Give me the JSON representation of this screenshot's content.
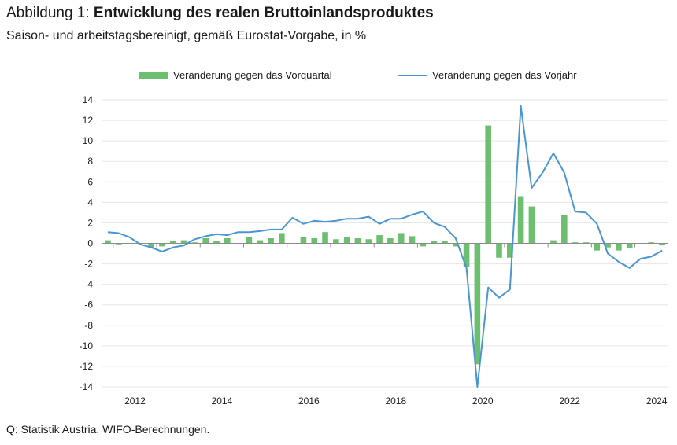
{
  "header": {
    "title_prefix": "Abbildung 1: ",
    "title_main": "Entwicklung des realen Bruttoinlandsproduktes",
    "subtitle": "Saison- und arbeitstagsbereinigt, gemäß Eurostat-Vorgabe, in %"
  },
  "footer": {
    "source": "Q: Statistik Austria, WIFO-Berechnungen."
  },
  "colors": {
    "bar": "#6cbf6e",
    "line": "#4a96d2",
    "grid": "#e6e6e6",
    "axis": "#8c8c8c"
  },
  "chart_data": {
    "type": "bar",
    "ylim": [
      -14,
      14
    ],
    "yticks": [
      "14",
      "12",
      "10",
      "8",
      "6",
      "4",
      "2",
      "0",
      "-2",
      "-4",
      "-6",
      "-8",
      "-10",
      "-12",
      "-14"
    ],
    "xticks": [
      "2012",
      "2014",
      "2016",
      "2018",
      "2020",
      "2022",
      "2024"
    ],
    "grid": true,
    "legend_position": "top",
    "categories": [
      "2011Q4",
      "2012Q1",
      "2012Q2",
      "2012Q3",
      "2012Q4",
      "2013Q1",
      "2013Q2",
      "2013Q3",
      "2013Q4",
      "2014Q1",
      "2014Q2",
      "2014Q3",
      "2014Q4",
      "2015Q1",
      "2015Q2",
      "2015Q3",
      "2015Q4",
      "2016Q1",
      "2016Q2",
      "2016Q3",
      "2016Q4",
      "2017Q1",
      "2017Q2",
      "2017Q3",
      "2017Q4",
      "2018Q1",
      "2018Q2",
      "2018Q3",
      "2018Q4",
      "2019Q1",
      "2019Q2",
      "2019Q3",
      "2019Q4",
      "2020Q1",
      "2020Q2",
      "2020Q3",
      "2020Q4",
      "2021Q1",
      "2021Q2",
      "2021Q3",
      "2021Q4",
      "2022Q1",
      "2022Q2",
      "2022Q3",
      "2022Q4",
      "2023Q1",
      "2023Q2",
      "2023Q3",
      "2023Q4",
      "2024Q1",
      "2024Q2",
      "2024Q3"
    ],
    "series": [
      {
        "name": "Veränderung gegen das Vorquartal",
        "type": "bar",
        "values": [
          0.3,
          -0.1,
          0,
          0,
          -0.5,
          -0.3,
          0.2,
          0.3,
          0.1,
          0.5,
          0.2,
          0.5,
          0,
          0.6,
          0.3,
          0.5,
          1.0,
          0,
          0.6,
          0.5,
          1.1,
          0.4,
          0.6,
          0.5,
          0.4,
          0.8,
          0.5,
          1.0,
          0.7,
          -0.3,
          0.2,
          0.2,
          -0.3,
          -2.3,
          -11.8,
          11.5,
          -1.4,
          -1.4,
          4.6,
          3.6,
          0,
          0.3,
          2.8,
          0.1,
          0.1,
          -0.7,
          -0.4,
          -0.7,
          -0.5,
          0,
          0.1,
          -0.2
        ]
      },
      {
        "name": "Veränderung gegen das Vorjahr",
        "type": "line",
        "values": [
          1.1,
          1.0,
          0.6,
          -0.1,
          -0.4,
          -0.8,
          -0.4,
          -0.2,
          0.4,
          0.7,
          0.9,
          0.8,
          1.1,
          1.1,
          1.2,
          1.35,
          1.35,
          2.5,
          1.9,
          2.2,
          2.1,
          2.2,
          2.4,
          2.4,
          2.6,
          1.9,
          2.4,
          2.4,
          2.8,
          3.1,
          2.0,
          1.6,
          0.5,
          -2.4,
          -14.0,
          -4.3,
          -5.3,
          -4.5,
          13.4,
          5.4,
          6.9,
          8.8,
          6.9,
          3.1,
          3.0,
          1.9,
          -1.0,
          -1.8,
          -2.4,
          -1.5,
          -1.3,
          -0.7
        ]
      }
    ]
  }
}
